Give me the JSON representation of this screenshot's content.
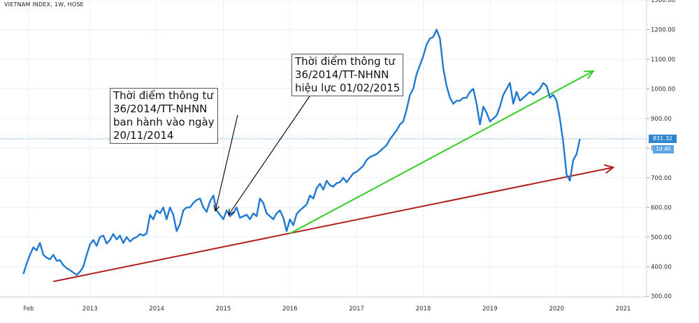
{
  "chart_data": {
    "type": "line",
    "title": "VIETNAM INDEX, 1W, HOSE",
    "x_tick_labels": [
      "Feb",
      "2013",
      "2014",
      "2015",
      "2016",
      "2017",
      "2018",
      "2019",
      "2020",
      "2021"
    ],
    "x_tick_values": [
      2012.08,
      2013.0,
      2014.0,
      2015.0,
      2016.0,
      2017.0,
      2018.0,
      2019.0,
      2020.0,
      2021.0
    ],
    "y_tick_labels": [
      "1300.00",
      "1200.00",
      "1100.00",
      "1000.00",
      "900.00",
      "800.00",
      "700.00",
      "600.00",
      "500.00",
      "400.00",
      "300.00"
    ],
    "y_tick_values": [
      1300,
      1200,
      1100,
      1000,
      900,
      800,
      700,
      600,
      500,
      400,
      300
    ],
    "xlim": [
      2011.65,
      2021.35
    ],
    "ylim": [
      297,
      1300
    ],
    "last_price_label": "831.32",
    "last_price": 831.32,
    "timeframe_badge": "1d 4h",
    "series": [
      {
        "color": "#1f78d1",
        "x": [
          2012.0,
          2012.05,
          2012.1,
          2012.15,
          2012.2,
          2012.25,
          2012.3,
          2012.35,
          2012.4,
          2012.45,
          2012.5,
          2012.55,
          2012.6,
          2012.65,
          2012.7,
          2012.75,
          2012.8,
          2012.85,
          2012.9,
          2012.95,
          2013.0,
          2013.05,
          2013.1,
          2013.15,
          2013.2,
          2013.25,
          2013.3,
          2013.35,
          2013.4,
          2013.45,
          2013.5,
          2013.55,
          2013.6,
          2013.65,
          2013.7,
          2013.75,
          2013.8,
          2013.85,
          2013.9,
          2013.95,
          2014.0,
          2014.05,
          2014.1,
          2014.15,
          2014.2,
          2014.25,
          2014.3,
          2014.35,
          2014.4,
          2014.45,
          2014.5,
          2014.55,
          2014.6,
          2014.65,
          2014.7,
          2014.75,
          2014.8,
          2014.85,
          2014.9,
          2014.95,
          2015.0,
          2015.05,
          2015.1,
          2015.15,
          2015.2,
          2015.25,
          2015.3,
          2015.35,
          2015.4,
          2015.45,
          2015.5,
          2015.55,
          2015.6,
          2015.65,
          2015.7,
          2015.75,
          2015.8,
          2015.85,
          2015.9,
          2015.95,
          2016.0,
          2016.05,
          2016.1,
          2016.15,
          2016.2,
          2016.25,
          2016.3,
          2016.35,
          2016.4,
          2016.45,
          2016.5,
          2016.55,
          2016.6,
          2016.65,
          2016.7,
          2016.75,
          2016.8,
          2016.85,
          2016.9,
          2016.95,
          2017.0,
          2017.05,
          2017.1,
          2017.15,
          2017.2,
          2017.25,
          2017.3,
          2017.35,
          2017.4,
          2017.45,
          2017.5,
          2017.55,
          2017.6,
          2017.65,
          2017.7,
          2017.75,
          2017.8,
          2017.85,
          2017.9,
          2017.95,
          2018.0,
          2018.05,
          2018.1,
          2018.15,
          2018.2,
          2018.25,
          2018.3,
          2018.35,
          2018.4,
          2018.45,
          2018.5,
          2018.55,
          2018.6,
          2018.65,
          2018.7,
          2018.75,
          2018.8,
          2018.85,
          2018.9,
          2018.95,
          2019.0,
          2019.05,
          2019.1,
          2019.15,
          2019.2,
          2019.25,
          2019.3,
          2019.35,
          2019.4,
          2019.45,
          2019.5,
          2019.55,
          2019.6,
          2019.65,
          2019.7,
          2019.75,
          2019.8,
          2019.85,
          2019.9,
          2019.95,
          2020.0,
          2020.05,
          2020.1,
          2020.15,
          2020.2,
          2020.25,
          2020.3,
          2020.35
        ],
        "y": [
          375,
          410,
          440,
          465,
          455,
          480,
          440,
          430,
          425,
          440,
          420,
          422,
          405,
          395,
          388,
          380,
          372,
          383,
          400,
          440,
          475,
          490,
          470,
          500,
          505,
          478,
          490,
          510,
          492,
          505,
          480,
          500,
          485,
          495,
          500,
          510,
          505,
          512,
          575,
          560,
          590,
          580,
          600,
          560,
          600,
          575,
          520,
          545,
          590,
          600,
          600,
          615,
          625,
          630,
          600,
          585,
          620,
          640,
          590,
          575,
          560,
          590,
          570,
          580,
          600,
          565,
          570,
          575,
          560,
          580,
          570,
          630,
          615,
          580,
          570,
          560,
          580,
          590,
          565,
          520,
          560,
          540,
          578,
          590,
          600,
          610,
          640,
          630,
          665,
          680,
          660,
          690,
          675,
          670,
          682,
          685,
          700,
          685,
          700,
          715,
          720,
          730,
          740,
          760,
          770,
          775,
          780,
          790,
          800,
          810,
          830,
          845,
          860,
          880,
          890,
          930,
          980,
          1000,
          1050,
          1080,
          1110,
          1150,
          1170,
          1175,
          1200,
          1170,
          1070,
          1010,
          970,
          950,
          960,
          960,
          970,
          970,
          990,
          1000,
          950,
          880,
          940,
          920,
          890,
          900,
          910,
          940,
          980,
          1000,
          1020,
          950,
          990,
          960,
          970,
          980,
          990,
          980,
          990,
          1000,
          1020,
          1010,
          970,
          980,
          960,
          900,
          820,
          710,
          690,
          760,
          780,
          831
        ]
      }
    ],
    "trendlines": [
      {
        "color": "#b01e1e",
        "x": [
          2012.45,
          2020.85
        ],
        "y": [
          350,
          735
        ]
      },
      {
        "color": "#33cc22",
        "x": [
          2016.0,
          2020.55
        ],
        "y": [
          512,
          1060
        ]
      }
    ],
    "annotations": [
      {
        "lines": [
          "Thời điểm thông tư",
          "36/2014/TT-NHNN",
          "ban hành vào ngày",
          "20/11/2014"
        ],
        "target_x": 2014.88,
        "target_y": 588
      },
      {
        "lines": [
          "Thời điểm thông tư",
          "36/2014/TT-NHNN",
          "hiệu lực 01/02/2015"
        ],
        "target_x": 2015.08,
        "target_y": 575
      }
    ],
    "grid": true
  }
}
